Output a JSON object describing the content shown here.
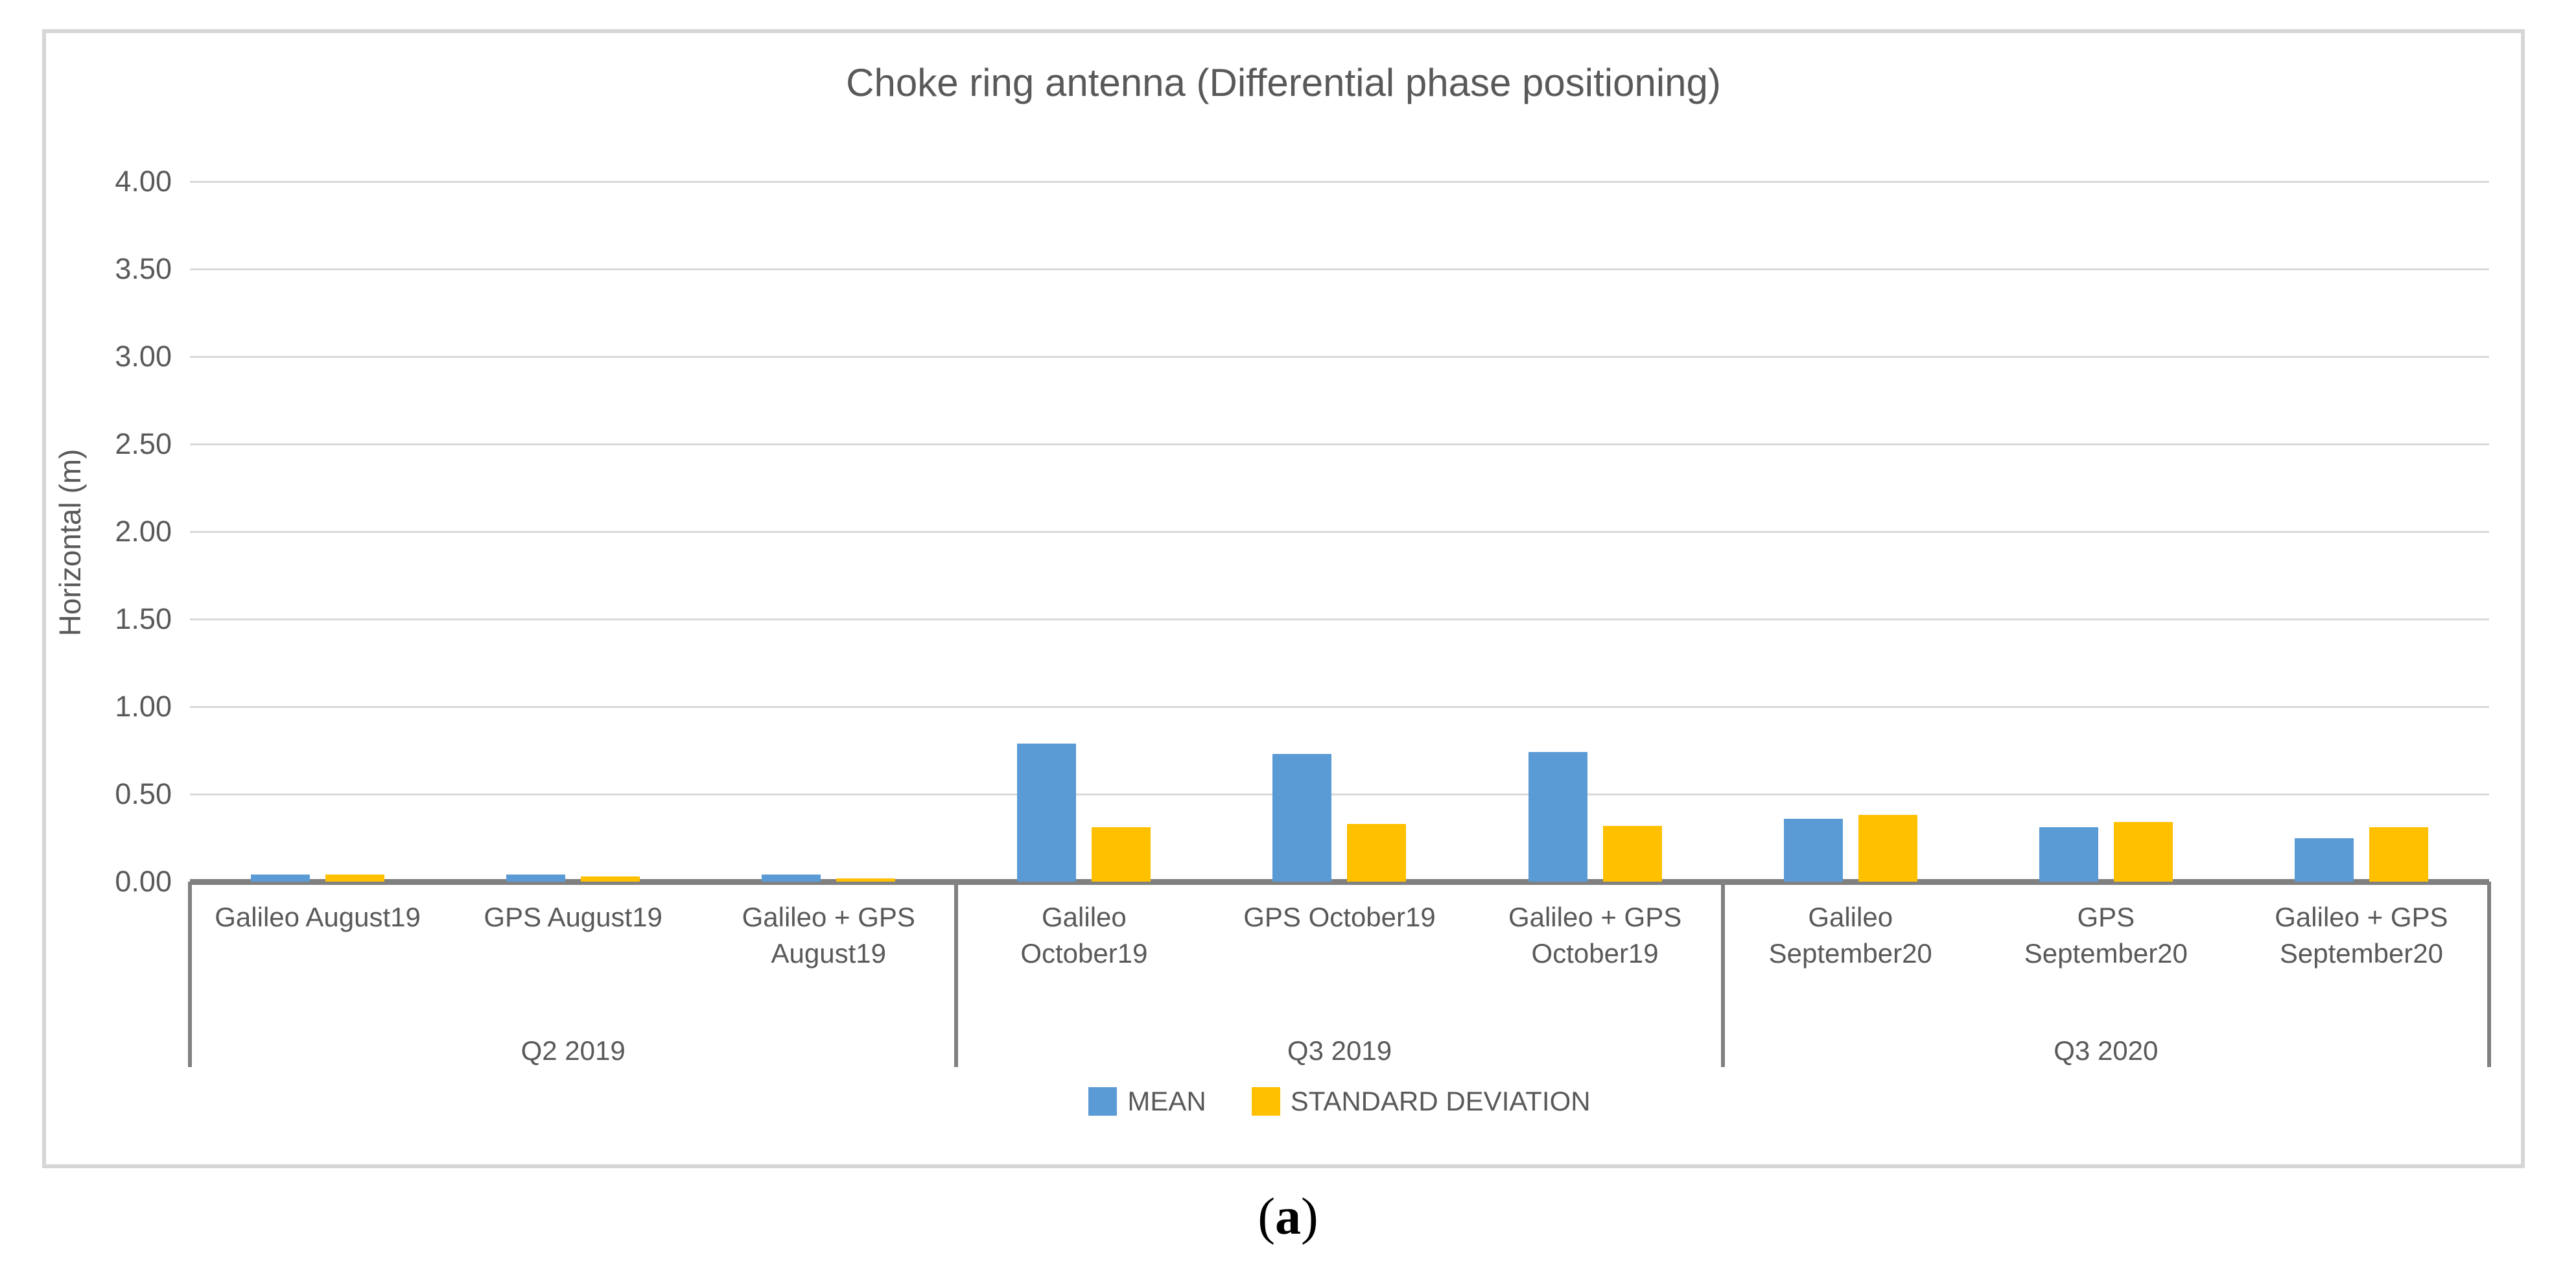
{
  "caption": {
    "pre": "(",
    "letter": "a",
    "post": ")"
  },
  "chart_data": {
    "type": "bar",
    "title": "Choke ring antenna (Differential phase positioning)",
    "xlabel": "",
    "ylabel": "Horizontal (m)",
    "ylim": [
      0,
      4.0
    ],
    "ytick_step": 0.5,
    "ytick_labels": [
      "4.00",
      "3.50",
      "3.00",
      "2.50",
      "2.00",
      "1.50",
      "1.00",
      "0.50",
      "0.00"
    ],
    "grid": "horizontal",
    "legend_position": "bottom",
    "series": [
      {
        "name": "MEAN",
        "color": "#5b9bd5"
      },
      {
        "name": "STANDARD DEVIATION",
        "color": "#ffc000"
      }
    ],
    "groups": [
      {
        "label": "Q2 2019",
        "categories": [
          {
            "label_lines": [
              "Galileo August19"
            ],
            "mean": 0.04,
            "sd": 0.04
          },
          {
            "label_lines": [
              "GPS August19"
            ],
            "mean": 0.04,
            "sd": 0.03
          },
          {
            "label_lines": [
              "Galileo + GPS",
              "August19"
            ],
            "mean": 0.04,
            "sd": 0.02
          }
        ]
      },
      {
        "label": "Q3 2019",
        "categories": [
          {
            "label_lines": [
              "Galileo",
              "October19"
            ],
            "mean": 0.79,
            "sd": 0.31
          },
          {
            "label_lines": [
              "GPS October19"
            ],
            "mean": 0.73,
            "sd": 0.33
          },
          {
            "label_lines": [
              "Galileo + GPS",
              "October19"
            ],
            "mean": 0.74,
            "sd": 0.32
          }
        ]
      },
      {
        "label": "Q3 2020",
        "categories": [
          {
            "label_lines": [
              "Galileo",
              "September20"
            ],
            "mean": 0.36,
            "sd": 0.38
          },
          {
            "label_lines": [
              "GPS",
              "September20"
            ],
            "mean": 0.31,
            "sd": 0.34
          },
          {
            "label_lines": [
              "Galileo + GPS",
              "September20"
            ],
            "mean": 0.25,
            "sd": 0.31
          }
        ]
      }
    ],
    "axis_color": "#808080",
    "gridline_color": "#d9d9d9",
    "text_color": "#595959"
  }
}
